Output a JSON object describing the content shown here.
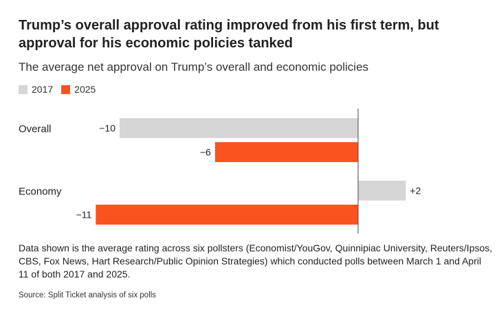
{
  "title": "Trump’s overall approval rating improved from his first term, but approval for his economic policies tanked",
  "subtitle": "The average net approval on Trump’s overall and economic policies",
  "legend": [
    {
      "label": "2017",
      "color": "#d6d6d6"
    },
    {
      "label": "2025",
      "color": "#fa5320"
    }
  ],
  "chart_data": {
    "type": "bar",
    "orientation": "horizontal",
    "categories": [
      "Overall",
      "Economy"
    ],
    "series": [
      {
        "name": "2017",
        "color": "#d6d6d6",
        "values": [
          -10,
          2
        ],
        "labels": [
          "−10",
          "+2"
        ]
      },
      {
        "name": "2025",
        "color": "#fa5320",
        "values": [
          -6,
          -11
        ],
        "labels": [
          "−6",
          "−11"
        ]
      }
    ],
    "title": "Trump’s overall approval rating improved from his first term, but approval for his economic policies tanked",
    "xlabel": "",
    "ylabel": "",
    "xlim": [
      -11,
      2
    ],
    "grid": false,
    "legend_position": "top-left"
  },
  "note": "Data shown is the average rating across six pollsters (Economist/YouGov, Quinnipiac University, Reuters/Ipsos, CBS, Fox News, Hart Research/Public Opinion Strategies) which conducted polls between March 1 and April 11 of both 2017 and 2025.",
  "source": "Source: Split Ticket analysis of six polls"
}
